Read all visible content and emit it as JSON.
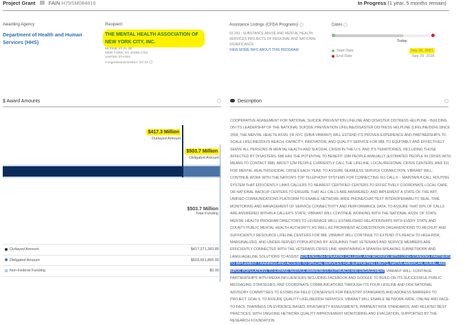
{
  "header": {
    "type": "Project Grant",
    "fain_label": "FAIN",
    "fain": "H79SM084816",
    "status": "In Progress",
    "status_detail": "(1 year, 5 months remain)"
  },
  "agency": {
    "label": "Awarding Agency",
    "name": "Department of Health and Human Services (HHS)"
  },
  "recipient": {
    "label": "Recipient",
    "name": "THE MENTAL HEALTH ASSOCIATION OF NEW YORK CITY, INC.",
    "address1": "50 PINE ST FL 2B",
    "address2": "NEW YORK, NY 10005-1754",
    "country": "UNITED STATES",
    "district": "Congressional District: NY-10"
  },
  "cfda": {
    "label": "Assistance Listings (CFDA Programs)",
    "program": "93.243 - SUBSTANCE ABUSE AND MENTAL HEALTH SERVICES PROJECTS OF REGIONAL AND NATIONAL SIGNIFICANCE",
    "link": "VIEW MORE INFO ABOUT THIS PROGRAM"
  },
  "dates": {
    "label": "Dates",
    "today": "Today",
    "start_label": "Start Date",
    "end_label": "End Date",
    "start": "Sep 30, 2021",
    "end": "Sep 29, 2026",
    "progress_percent": 70
  },
  "awards": {
    "title": "$ Award Amounts",
    "outlayed_value": "$417.3 Million",
    "outlayed_label": "Outlayed Amount",
    "obligated_value": "$503.7 Million",
    "obligated_label": "Obligated Amount",
    "total_value": "$503.7 Million",
    "total_label": "Total Funding",
    "colors": {
      "outlayed": "#0b2c5a",
      "obligated": "#4a74a8",
      "nonfederal": "#6ab0c8"
    },
    "rows": [
      {
        "label": "Outlayed Amount",
        "value": "$417,271,383.85"
      },
      {
        "label": "Obligated Amount",
        "value": "$503,651,855.00"
      },
      {
        "label": "Non-Federal Funding",
        "value": "$0.00"
      }
    ]
  },
  "description": {
    "title": "Description",
    "text_before": "COOPERATIVE AGREEMENT FOR NATIONAL SUICIDE PREVENTION LIFELINE AND DISASTER DISTRESS HELPLINE - BUILDING ON ITS LEADERSHIP OF THE NATIONAL SUICIDE PREVENTION LIFELINE/DISASTER DISTRESS HELPLINE (LIFELINE/DDH) SINCE 2004, THE MENTAL HEALTH ASSN. OF NYC (D/B/A VIBRANT) WILL EXTEND ITS PROVEN EXPERIENCE AND PARTNERSHIPS TO SCALE LIFELINE/DDH'S REACH, CAPACITY, INNOVATION, AND QUALITY SERVICE FOR 988, TO EQUITABLY AND EFFECTIVELY SERVE ALL PERSONS IN MENTAL HEALTH AND SUICIDAL CRISIS IN THE U.S. AND ITS TERRITORIES, INCLUDING THOSE AFFECTED BY DISASTERS. 988 HAS THE POTENTIAL TO BENEFIT 10M PEOPLE ANNUALLY (ESTIMATED PEOPLE IN CRISIS WITH MEANS TO CONTACT 988). ABOUT 12M PEOPLE CURRENTLY CALL THE LIFELINE, LOCAL/REGIONAL CRISIS CENTERS, AND 911 FOR MENTAL HEALTH/SUICIDAL CRISES EACH YEAR. TO ASSURE SEAMLESS SERVICE CONNECTION, VIBRANT WILL: CONTINUE WORK WITH THE NATION'S TOP TELEPHONY SYSTEMS FOR CONNECTING 911 CALLS -- MAINTAIN A CALL ROUTING SYSTEM THAT EFFICIENTLY LINKS CALLERS TO NEAREST CERTIFIED CENTERS TO EFFECTIVELY COORDINATE LOCAL CARE, OR NATIONAL BACKUP CENTERS TO ENSURE THAT ALL CALLS ARE ANSWERED; AND IMPLEMENT A STATE-OF-THE ART, UNIFIED COMMUNICATIONS PLATFORM TO ENABLE NETWORK-WIDE PHONE/CHAT/TEXT INTEROPERABILITY, REAL-TIME MONITORING AND MANAGEMENT OF SERVICE CONNECTIVITY AND PERFORMANCE DATA. TO ASSURE THAT 90% OF CALLS ARE ANSWERED WITHIN A CALLER'S STATE, VIBRANT WILL CONTINUE WORKING WITH THE NATIONAL ASSN. OF STATE MENTAL HEALTH PROGRAM DIRECTORS TO LEVERAGE WELL-ESTABLISHED RELATIONSHIPS WITH EVERY STATE AND COUNTY PUBLIC MENTAL HEALTH AUTHORITY, AS WELL AS PROMINENT ACCREDITATION ORGANIZATIONS TO RECRUIT AND SUFFICIENTLY RESOURCE LIFELINE CENTERS FOR 988. VIBRANT WILL CONTINUE TO EXTEND ITS REACH TO HIGH-RISK, MARGINALIZED, AND UNDER-SERVED POPULATIONS BY: ASSURING THAT VETERANS AND SERVICE MEMBERS ARE EFFICIENTLY CONNECTED WITH THE VETERANS CRISIS LINE; MAINTAINING A SPANISH-SPEAKING SUBNETWORK AND LANGUAGELINE SOLUTIONS TO ASSIST ",
    "text_selected": "NON-ENGLISH-SPEAKING CALLERS; AND WORKING WITH LONG-STANDING PARTNERS TO IMPLEMENT TRAININGS AND ACCESS TO SPECIAL SERVICES FOR SUPPORTING LBGTQ, NATIVE AMERICAN, RURAL, AND BIPOC POPULATIONS TO EXPAND SERVICE AWARENESS OUTREACH AND ENGAGEMENT",
    "text_after": ". VIBRANT WILL: CONTINUE PARTNERSHIPS WITH MEDIA INFLUENCERS INCLUDING FACEBOOK AND GOOGLE TO BUILD ON ITS SUCCESSFUL PUBLIC MESSAGING STRATEGIES; AND COORDINATE COMMUNICATIONS THROUGH ITS FOUR LIFELINE AND DDH NATIONAL ADVISORY COMMITTEES TO ESTABLISH FIELD CONSENSUS FOR INDUSTRY STANDARDS AND ADDRESS BARRIERS TO PROJECT GOALS. TO ASSURE QUALITY LIFELINE/DDH SERVICES, VIBRANT WILL ENABLE NETWORK-WIDE, ONLINE AND FACE-TO-FACE TRAININGS ON EVIDENCE-BASED, RISK/SAFETY ASSESSMENTS, IMMINENT RISK STANDARDS, AND RELATED BEST PRACTICES, WITH ONGOING NETWORK QUALITY IMPROVEMENT MONITORING AND EVALUATION, SUPPORTED BY THE RESEARCH FOUNDATION"
  }
}
